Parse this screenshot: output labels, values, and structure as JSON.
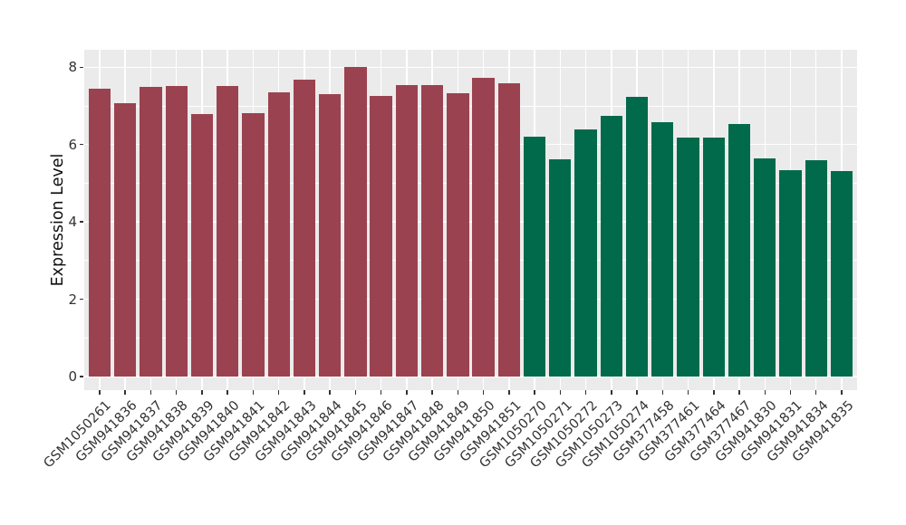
{
  "chart_data": {
    "type": "bar",
    "title": "",
    "xlabel": "",
    "ylabel": "Expression Level",
    "yticks": [
      0,
      2,
      4,
      6,
      8
    ],
    "ylim": [
      0,
      8.45
    ],
    "grid": true,
    "legend": false,
    "panel_bg": "#EBEBEB",
    "grid_color": "#FFFFFF",
    "axis_text_color": "#333333",
    "tick_color": "#333333",
    "group_colors": [
      "#9B4250",
      "#016A4B"
    ],
    "group_counts": [
      17,
      13
    ],
    "categories": [
      "GSM1050261",
      "GSM941836",
      "GSM941837",
      "GSM941838",
      "GSM941839",
      "GSM941840",
      "GSM941841",
      "GSM941842",
      "GSM941843",
      "GSM941844",
      "GSM941845",
      "GSM941846",
      "GSM941847",
      "GSM941848",
      "GSM941849",
      "GSM941850",
      "GSM941851",
      "GSM1050270",
      "GSM1050271",
      "GSM1050272",
      "GSM1050273",
      "GSM1050274",
      "GSM377458",
      "GSM377461",
      "GSM377464",
      "GSM377467",
      "GSM941830",
      "GSM941831",
      "GSM941834",
      "GSM941835"
    ],
    "values": [
      7.45,
      7.06,
      7.5,
      7.52,
      6.78,
      7.52,
      6.81,
      7.34,
      7.67,
      7.3,
      8.01,
      7.26,
      7.53,
      7.53,
      7.32,
      7.73,
      7.59,
      6.21,
      5.62,
      6.4,
      6.75,
      7.24,
      6.57,
      6.18,
      6.18,
      6.54,
      5.64,
      5.33,
      5.6,
      5.31
    ]
  }
}
